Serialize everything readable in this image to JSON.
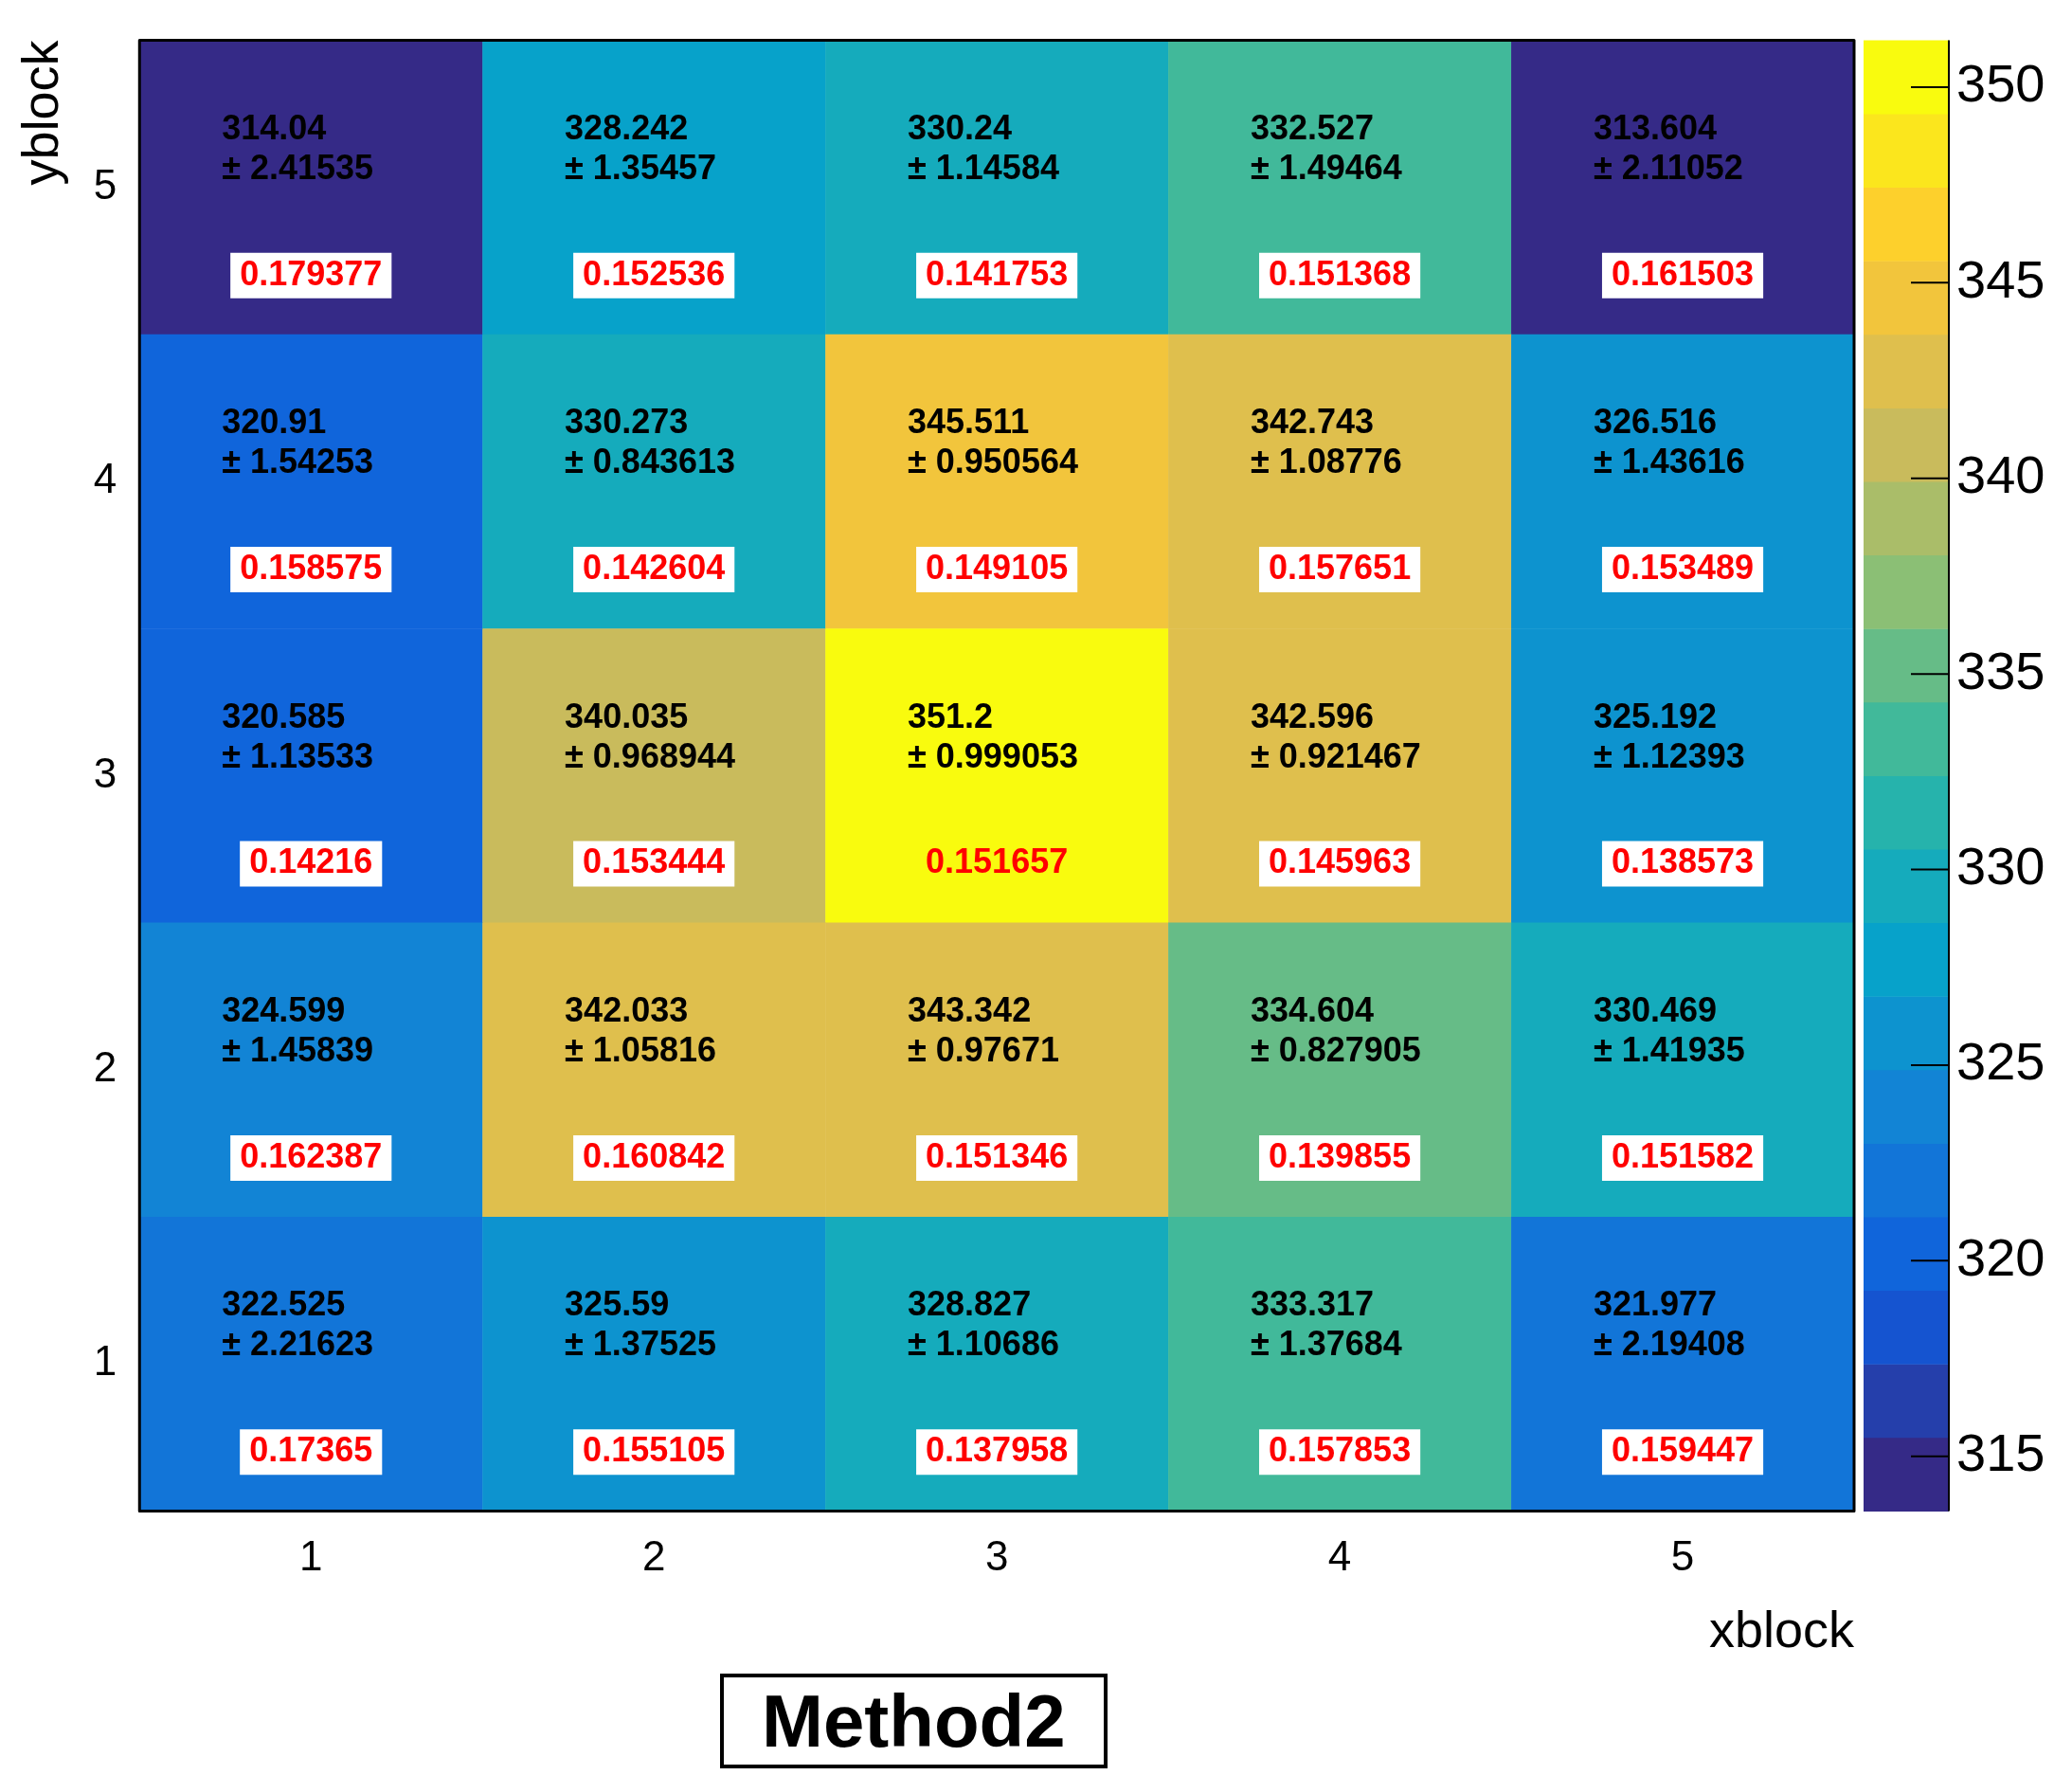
{
  "chart_data": {
    "type": "heatmap",
    "title": "Method2",
    "xlabel": "xblock",
    "ylabel": "yblock",
    "categories": [
      "1",
      "2",
      "3",
      "4",
      "5"
    ],
    "y_categories": [
      "5",
      "4",
      "3",
      "2",
      "1"
    ],
    "cells": [
      [
        314.04,
        328.242,
        330.24,
        332.527,
        313.604
      ],
      [
        320.91,
        330.273,
        345.511,
        342.743,
        326.516
      ],
      [
        320.585,
        340.035,
        351.2,
        342.596,
        325.192
      ],
      [
        324.599,
        342.033,
        343.342,
        334.604,
        330.469
      ],
      [
        322.525,
        325.59,
        328.827,
        333.317,
        321.977
      ]
    ],
    "cell_labels": [
      [
        "314.04\n± 2.41535\n0.179377",
        "328.242\n± 1.35457\n0.152536",
        "330.24\n± 1.14584\n0.141753",
        "332.527\n± 1.49464\n0.151368",
        "313.604\n± 2.11052\n0.161503"
      ],
      [
        "320.91\n± 1.54253\n0.158575",
        "330.273\n± 0.843613\n0.142604",
        "345.511\n± 0.950564\n0.149105",
        "342.743\n± 1.08776\n0.157651",
        "326.516\n± 1.43616\n0.153489"
      ],
      [
        "320.585\n± 1.13533\n0.14216",
        "340.035\n± 0.968944\n0.153444",
        "351.2\n± 0.999053\n0.151657",
        "342.596\n± 0.921467\n0.145963",
        "325.192\n± 1.12393\n0.138573"
      ],
      [
        "324.599\n± 1.45839\n0.162387",
        "342.033\n± 1.05816\n0.160842",
        "343.342\n± 0.97671\n0.151346",
        "334.604\n± 0.827905\n0.139855",
        "330.469\n± 1.41935\n0.151582"
      ],
      [
        "322.525\n± 2.21623\n0.17365",
        "325.59\n± 1.37525\n0.155105",
        "328.827\n± 1.10686\n0.137958",
        "333.317\n± 1.37684\n0.157853",
        "321.977\n± 2.19408\n0.159447"
      ]
    ],
    "clim": [
      313.604,
      351.2
    ],
    "cticks": [
      315,
      320,
      325,
      330,
      335,
      340,
      345,
      350
    ]
  }
}
